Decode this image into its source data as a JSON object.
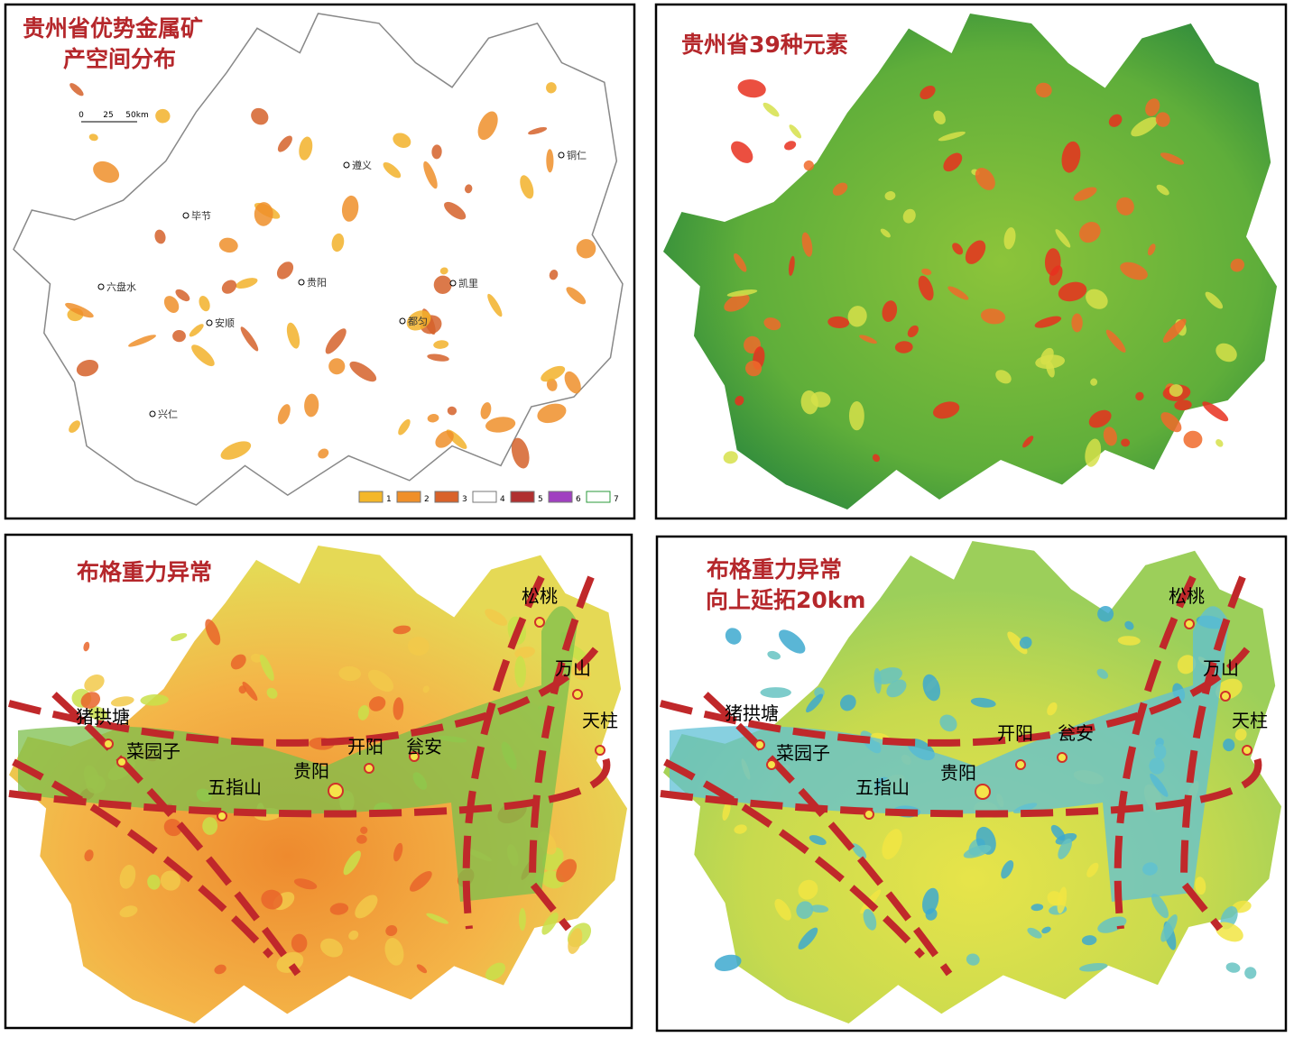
{
  "panels": [
    {
      "title": [
        "贵州省优势金属矿",
        "产空间分布"
      ],
      "scale": [
        "0",
        "25",
        "50km"
      ],
      "cities": [
        "毕节",
        "遵义",
        "铜仁",
        "六盘水",
        "安顺",
        "贵阳",
        "凯里",
        "都匀",
        "兴仁"
      ],
      "legend": [
        "1",
        "2",
        "3",
        "4",
        "5",
        "6",
        "7"
      ]
    },
    {
      "title": [
        "贵州省39种元素"
      ]
    },
    {
      "title": [
        "布格重力异常"
      ],
      "cities": [
        "松桃",
        "万山",
        "天柱",
        "猪拱塘",
        "菜园子",
        "五指山",
        "贵阳",
        "开阳",
        "瓮安"
      ]
    },
    {
      "title": [
        "布格重力异常",
        "向上延拓20km"
      ],
      "cities": [
        "松桃",
        "万山",
        "天柱",
        "猪拱塘",
        "菜园子",
        "五指山",
        "贵阳",
        "开阳",
        "瓮安"
      ]
    }
  ]
}
